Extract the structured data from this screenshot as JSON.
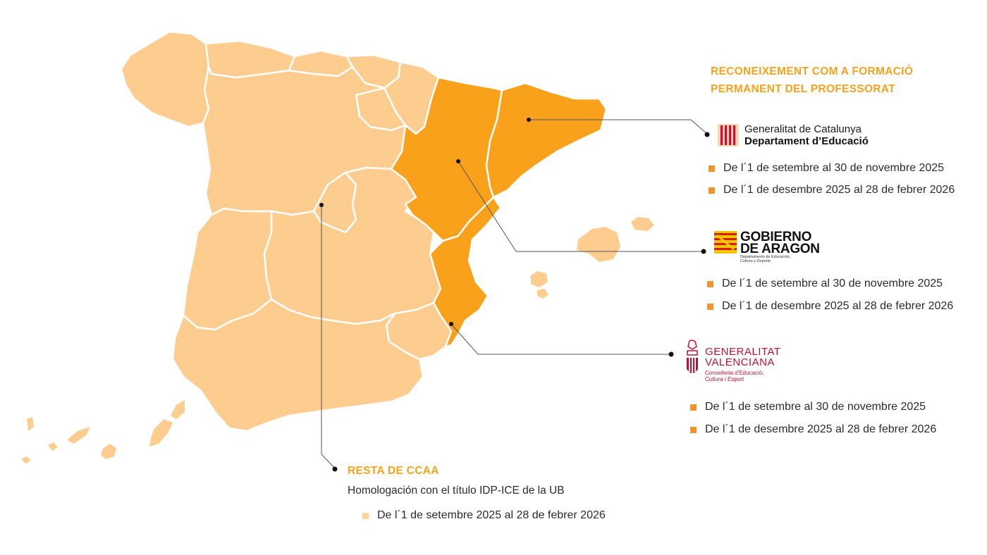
{
  "heading": {
    "line1": "RECONEIXEMENT COM A FORMACIÓ",
    "line2": "PERMANENT DEL PROFESSORAT"
  },
  "catalunya": {
    "logo_line1": "Generalitat de Catalunya",
    "logo_line2": "Departament d’Educació",
    "items": [
      "De l´1 de setembre al 30 de novembre 2025",
      "De l´1 de desembre 2025 al 28 de febrer 2026"
    ]
  },
  "aragon": {
    "logo_line1": "GOBIERNO",
    "logo_line2": "DE ARAGON",
    "logo_sub1": "Departamento de Educación,",
    "logo_sub2": "Cultura y Deporte",
    "items": [
      "De l´1 de setembre al 30 de novembre 2025",
      "De l´1 de desembre 2025 al 28 de febrer 2026"
    ]
  },
  "valenciana": {
    "logo_line1": "GENERALITAT",
    "logo_line2": "VALENCIANA",
    "logo_sub1": "Conselleria d'Educació,",
    "logo_sub2": "Cultura i Esport",
    "items": [
      "De l´1 de setembre al 30 de novembre 2025",
      "De l´1 de desembre 2025 al 28 de febrer 2026"
    ]
  },
  "resta": {
    "title": "RESTA DE CCAA",
    "subtitle": "Homologación con el título IDP-ICE de la UB",
    "items": [
      "De l´1 de setembre 2025 al 28 de febrer 2026"
    ]
  },
  "colors": {
    "highlight_region": "#f9a11b",
    "other_region": "#fccd8e",
    "accent_text": "#f7a21d",
    "border": "#ffffff",
    "connector": "#555555"
  }
}
